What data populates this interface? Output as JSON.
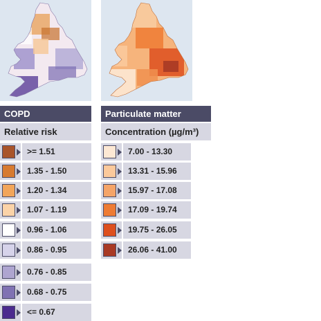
{
  "copd": {
    "title": "COPD",
    "subtitle": "Relative risk",
    "legend": [
      {
        "label": ">= 1.51",
        "color": "#a9542a"
      },
      {
        "label": "1.35 - 1.50",
        "color": "#d77a30"
      },
      {
        "label": "1.20 - 1.34",
        "color": "#f2a55a"
      },
      {
        "label": "1.07 - 1.19",
        "color": "#fbd3a8"
      },
      {
        "label": "0.96 - 1.06",
        "color": "#ffffff"
      },
      {
        "label": "0.86 - 0.95",
        "color": "#d6d3ea"
      },
      {
        "label": "0.76 - 0.85",
        "color": "#aea5d0"
      },
      {
        "label": "0.68 - 0.75",
        "color": "#8072b3"
      },
      {
        "label": "<= 0.67",
        "color": "#4b2a8e"
      }
    ]
  },
  "pm": {
    "title": "Particulate matter",
    "subtitle": "Concentration (µg/m³)",
    "legend": [
      {
        "label": "7.00 - 13.30",
        "color": "#fde8d4"
      },
      {
        "label": "13.31 - 15.96",
        "color": "#fbc99c"
      },
      {
        "label": "15.97 - 17.08",
        "color": "#f5a468"
      },
      {
        "label": "17.09 - 19.74",
        "color": "#ee7b34"
      },
      {
        "label": "19.75 - 26.05",
        "color": "#dd4f1e"
      },
      {
        "label": "26.06 - 41.00",
        "color": "#a93a25"
      }
    ]
  }
}
